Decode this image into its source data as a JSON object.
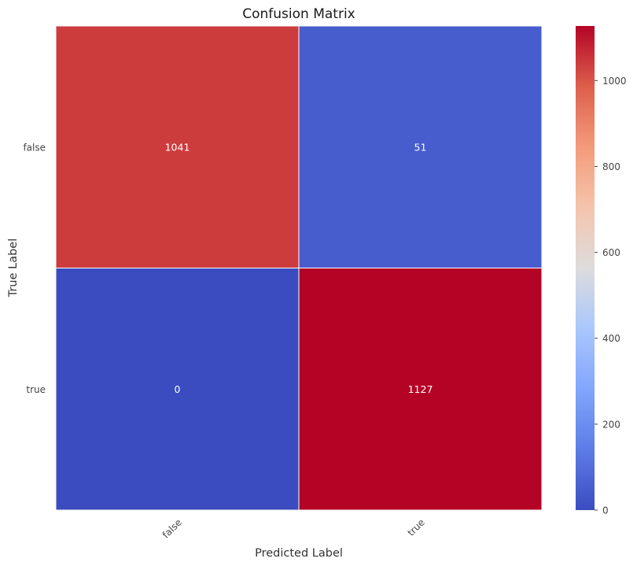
{
  "chart_data": {
    "type": "heatmap",
    "title": "Confusion Matrix",
    "xlabel": "Predicted Label",
    "ylabel": "True Label",
    "x_categories": [
      "false",
      "true"
    ],
    "y_categories": [
      "false",
      "true"
    ],
    "matrix": [
      [
        1041,
        51
      ],
      [
        0,
        1127
      ]
    ],
    "colormap": "coolwarm",
    "colorbar": {
      "range": [
        0,
        1127
      ],
      "ticks": [
        "0",
        "200",
        "400",
        "600",
        "800",
        "1000"
      ]
    },
    "grid_line_color": "#ffffff"
  }
}
